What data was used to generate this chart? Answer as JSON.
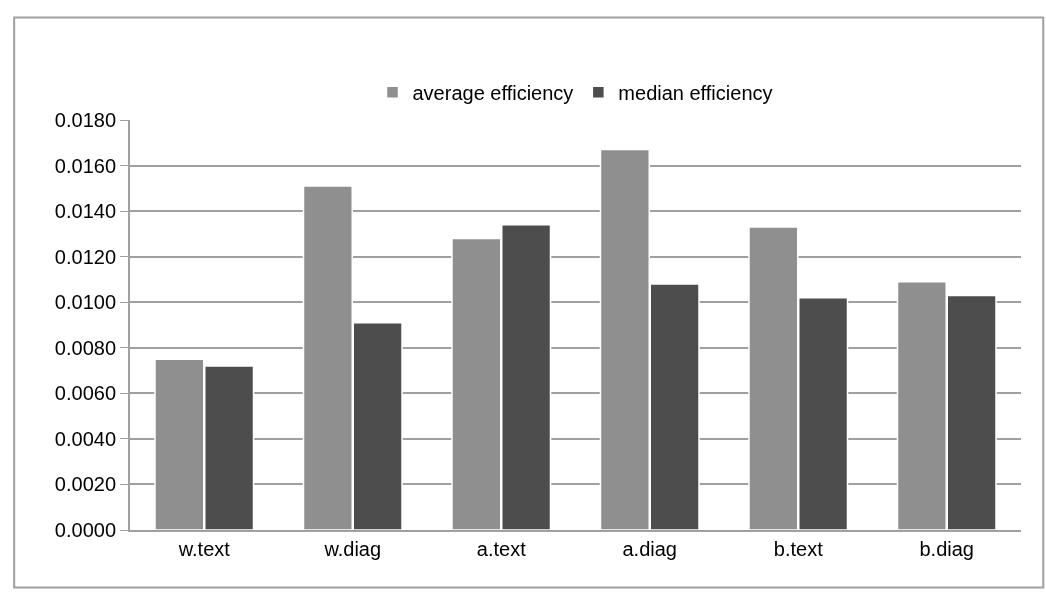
{
  "chart_data": {
    "type": "bar",
    "categories": [
      "w.text",
      "w.diag",
      "a.text",
      "a.diag",
      "b.text",
      "b.diag"
    ],
    "series": [
      {
        "name": "average efficiency",
        "color": "#8f8f8f",
        "values": [
          0.0075,
          0.0151,
          0.0128,
          0.0167,
          0.0133,
          0.0109
        ]
      },
      {
        "name": "median efficiency",
        "color": "#4d4d4d",
        "values": [
          0.0072,
          0.0091,
          0.0134,
          0.0108,
          0.0102,
          0.0103
        ]
      }
    ],
    "ylim": [
      0,
      0.018
    ],
    "yticks": [
      {
        "value": 0,
        "label": "0.0000"
      },
      {
        "value": 0.002,
        "label": "0.0020"
      },
      {
        "value": 0.004,
        "label": "0.0040"
      },
      {
        "value": 0.006,
        "label": "0.0060"
      },
      {
        "value": 0.008,
        "label": "0.0080"
      },
      {
        "value": 0.01,
        "label": "0.0100"
      },
      {
        "value": 0.012,
        "label": "0.0120"
      },
      {
        "value": 0.014,
        "label": "0.0140"
      },
      {
        "value": 0.016,
        "label": "0.0160"
      },
      {
        "value": 0.018,
        "label": "0.0180"
      }
    ],
    "grid": "y",
    "legend": "top"
  }
}
